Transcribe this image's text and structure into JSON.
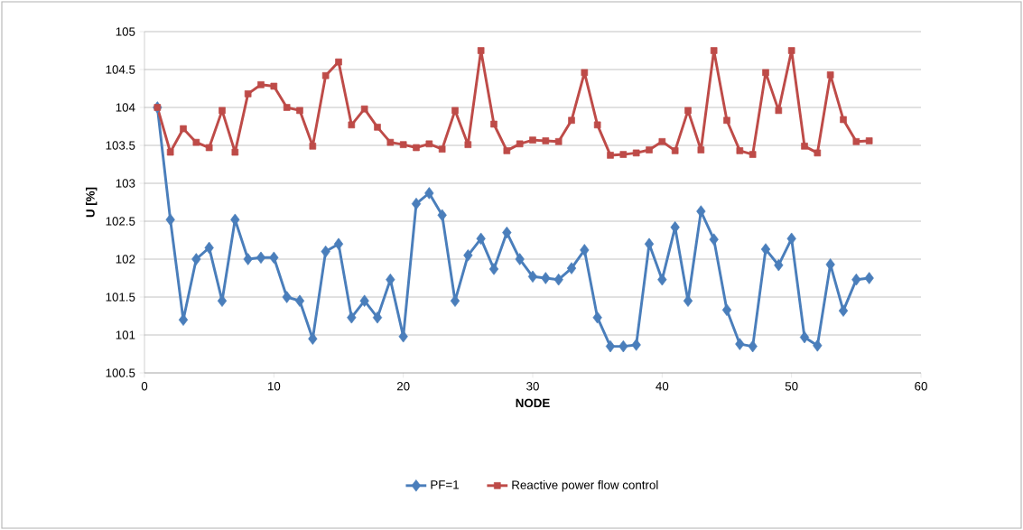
{
  "chart_data": {
    "type": "line",
    "xlabel": "NODE",
    "ylabel": "U [%]",
    "x": [
      1,
      2,
      3,
      4,
      5,
      6,
      7,
      8,
      9,
      10,
      11,
      12,
      13,
      14,
      15,
      16,
      17,
      18,
      19,
      20,
      21,
      22,
      23,
      24,
      25,
      26,
      27,
      28,
      29,
      30,
      31,
      32,
      33,
      34,
      35,
      36,
      37,
      38,
      39,
      40,
      41,
      42,
      43,
      44,
      45,
      46,
      47,
      48,
      49,
      50,
      51,
      52,
      53,
      54,
      55,
      56
    ],
    "series": [
      {
        "name": "PF=1",
        "color": "#4a7ebb",
        "marker": "diamond",
        "values": [
          104.0,
          102.52,
          101.2,
          102.0,
          102.15,
          101.45,
          102.52,
          102.0,
          102.02,
          102.02,
          101.5,
          101.45,
          100.95,
          102.1,
          102.2,
          101.23,
          101.45,
          101.23,
          101.73,
          100.98,
          102.73,
          102.87,
          102.58,
          101.45,
          102.05,
          102.27,
          101.87,
          102.35,
          102.0,
          101.77,
          101.75,
          101.73,
          101.88,
          102.12,
          101.23,
          100.85,
          100.85,
          100.87,
          102.2,
          101.73,
          102.42,
          101.45,
          102.63,
          102.26,
          101.33,
          100.88,
          100.85,
          102.13,
          101.92,
          102.27,
          100.97,
          100.86,
          101.93,
          101.32,
          101.73,
          101.75
        ]
      },
      {
        "name": "Reactive power flow control",
        "color": "#be4b48",
        "marker": "square",
        "values": [
          104.0,
          103.41,
          103.72,
          103.54,
          103.47,
          103.96,
          103.41,
          104.18,
          104.3,
          104.28,
          104.0,
          103.96,
          103.49,
          104.42,
          104.6,
          103.77,
          103.98,
          103.74,
          103.54,
          103.51,
          103.47,
          103.52,
          103.45,
          103.96,
          103.51,
          104.75,
          103.78,
          103.43,
          103.52,
          103.57,
          103.56,
          103.55,
          103.83,
          104.46,
          103.77,
          103.37,
          103.38,
          103.4,
          103.44,
          103.55,
          103.43,
          103.96,
          103.44,
          104.75,
          103.83,
          103.43,
          103.38,
          104.46,
          103.96,
          104.75,
          103.49,
          103.4,
          104.43,
          103.84,
          103.55,
          103.56
        ]
      }
    ],
    "xlim": [
      0,
      60
    ],
    "xticks": [
      0,
      10,
      20,
      30,
      40,
      50,
      60
    ],
    "ylim": [
      100.5,
      105
    ],
    "yticks": [
      100.5,
      101,
      101.5,
      102,
      102.5,
      103,
      103.5,
      104,
      104.5,
      105
    ],
    "grid": "y",
    "legend": "bottom"
  }
}
